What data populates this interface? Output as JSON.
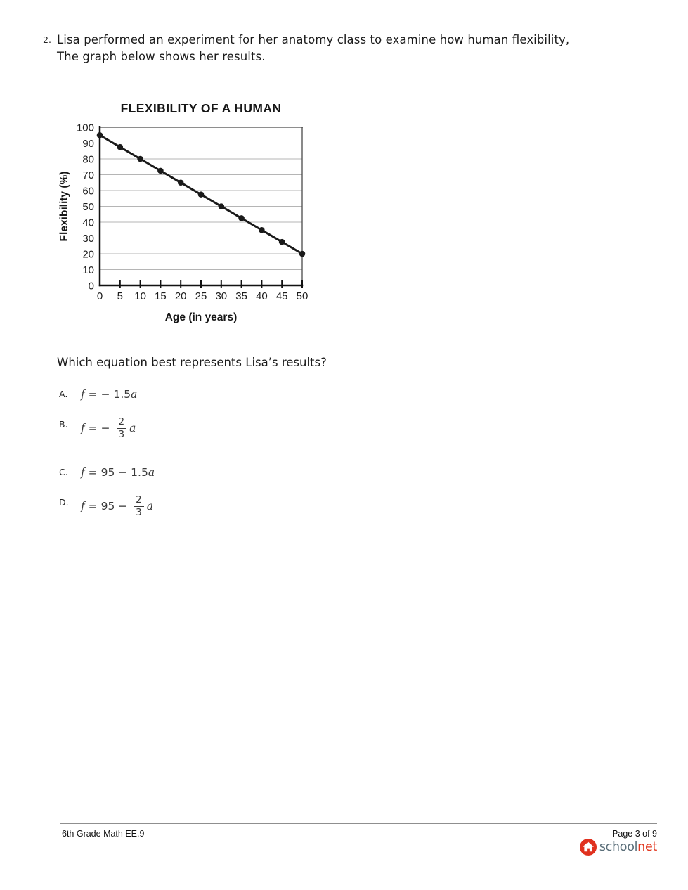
{
  "question": {
    "number": "2.",
    "text_line1": "Lisa performed an experiment for her anatomy class to examine how human flexibility,",
    "text_line2": "The graph below shows her results."
  },
  "chart_data": {
    "type": "line",
    "title": "FLEXIBILITY OF A HUMAN",
    "xlabel": "Age (in years)",
    "ylabel": "Flexibility (%)",
    "x": [
      0,
      5,
      10,
      15,
      20,
      25,
      30,
      35,
      40,
      45,
      50
    ],
    "y": [
      95,
      87.5,
      80,
      72.5,
      65,
      57.5,
      50,
      42.5,
      35,
      27.5,
      20
    ],
    "xlim": [
      0,
      50
    ],
    "ylim": [
      0,
      100
    ],
    "xticks": [
      0,
      5,
      10,
      15,
      20,
      25,
      30,
      35,
      40,
      45,
      50
    ],
    "yticks": [
      0,
      10,
      20,
      30,
      40,
      50,
      60,
      70,
      80,
      90,
      100
    ],
    "grid": "horizontal",
    "legend": "none",
    "marker": "circle",
    "line_color": "#1a1a1a",
    "grid_color": "#b5b5b5"
  },
  "prompt": "Which equation best represents Lisa’s results?",
  "options": [
    {
      "label": "A.",
      "segments": [
        {
          "t": "var",
          "v": "f"
        },
        {
          "t": "txt",
          "v": " = − 1.5"
        },
        {
          "t": "var",
          "v": "a"
        }
      ]
    },
    {
      "label": "B.",
      "segments": [
        {
          "t": "var",
          "v": "f"
        },
        {
          "t": "txt",
          "v": " = − "
        },
        {
          "t": "frac",
          "num": "2",
          "den": "3"
        },
        {
          "t": "var",
          "v": "a"
        }
      ]
    },
    {
      "label": "C.",
      "segments": [
        {
          "t": "var",
          "v": "f"
        },
        {
          "t": "txt",
          "v": " = 95 − 1.5"
        },
        {
          "t": "var",
          "v": "a"
        }
      ]
    },
    {
      "label": "D.",
      "segments": [
        {
          "t": "var",
          "v": "f"
        },
        {
          "t": "txt",
          "v": " = 95 − "
        },
        {
          "t": "frac",
          "num": "2",
          "den": "3"
        },
        {
          "t": "var",
          "v": "a"
        }
      ]
    }
  ],
  "footer": {
    "left": "6th Grade Math EE.9",
    "right": "Page 3 of 9",
    "logo": {
      "school": "school",
      "net": "net",
      "school_color": "#5a6e79",
      "net_color": "#e23a22",
      "icon_color": "#e0311f",
      "icon": "home-icon"
    }
  }
}
